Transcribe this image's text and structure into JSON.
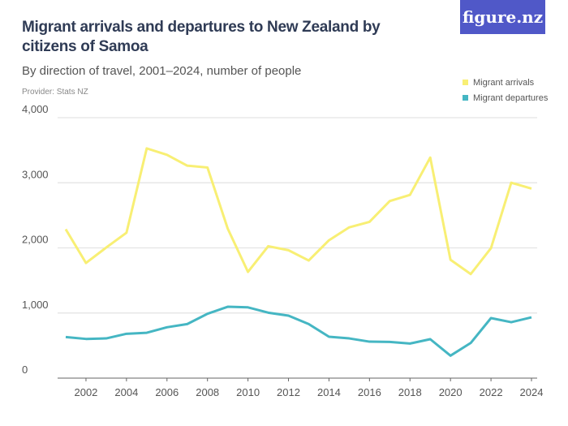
{
  "logo_text": "figure.nz",
  "chart_data": {
    "type": "line",
    "title": "Migrant arrivals and departures to New Zealand by citizens of Samoa",
    "subtitle": "By direction of travel, 2001–2024, number of people",
    "provider": "Provider: Stats NZ",
    "xlabel": "",
    "ylabel": "",
    "ylim": [
      0,
      4000
    ],
    "y_ticks": [
      "0",
      "1,000",
      "2,000",
      "3,000",
      "4,000"
    ],
    "x_ticks": [
      "2002",
      "2004",
      "2006",
      "2008",
      "2010",
      "2012",
      "2014",
      "2016",
      "2018",
      "2020",
      "2022",
      "2024"
    ],
    "grid": true,
    "legend_position": "top-right",
    "x": [
      2001,
      2002,
      2003,
      2004,
      2005,
      2006,
      2007,
      2008,
      2009,
      2010,
      2011,
      2012,
      2013,
      2014,
      2015,
      2016,
      2017,
      2018,
      2019,
      2020,
      2021,
      2022,
      2023,
      2024
    ],
    "series": [
      {
        "name": "Migrant arrivals",
        "color": "#f8ef74",
        "values": [
          2287,
          1768,
          2005,
          2233,
          3528,
          3429,
          3263,
          3234,
          2296,
          1631,
          2026,
          1964,
          1806,
          2117,
          2316,
          2400,
          2719,
          2814,
          3387,
          1818,
          1598,
          1996,
          3001,
          2910
        ]
      },
      {
        "name": "Migrant departures",
        "color": "#45b6c3",
        "values": [
          631,
          602,
          610,
          681,
          697,
          781,
          830,
          988,
          1096,
          1087,
          1005,
          959,
          830,
          635,
          610,
          560,
          556,
          531,
          598,
          345,
          540,
          922,
          859,
          934
        ]
      }
    ]
  }
}
